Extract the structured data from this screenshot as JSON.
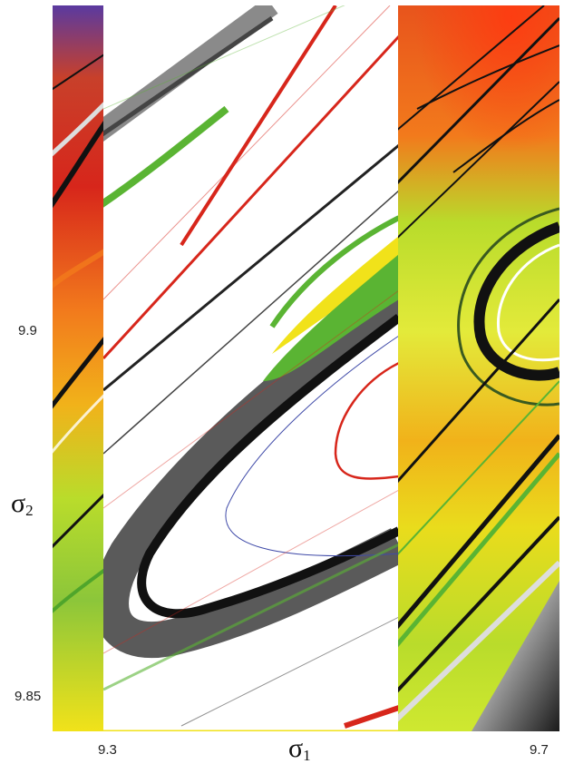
{
  "chart_data": {
    "type": "heatmap",
    "title": "",
    "xlabel": {
      "symbol": "σ",
      "sub": "1"
    },
    "ylabel": {
      "symbol": "σ",
      "sub": "2"
    },
    "xlim": [
      9.28,
      9.71
    ],
    "ylim": [
      9.843,
      9.957
    ],
    "x_ticks": [
      "9.3",
      "9.7"
    ],
    "y_ticks": [
      "9.9",
      "9.85"
    ],
    "x_tick_values": [
      9.3,
      9.7
    ],
    "y_tick_values": [
      9.9,
      9.85
    ],
    "grid": false,
    "colors": {
      "orange": "#f27a1c",
      "red": "#d7261b",
      "yellow": "#f1e21a",
      "lime": "#b9dc2b",
      "green": "#5ab433",
      "black": "#111111",
      "gray": "#5a5a5a",
      "blue": "#3f4aa8",
      "purple": "#5a3aa0"
    }
  }
}
